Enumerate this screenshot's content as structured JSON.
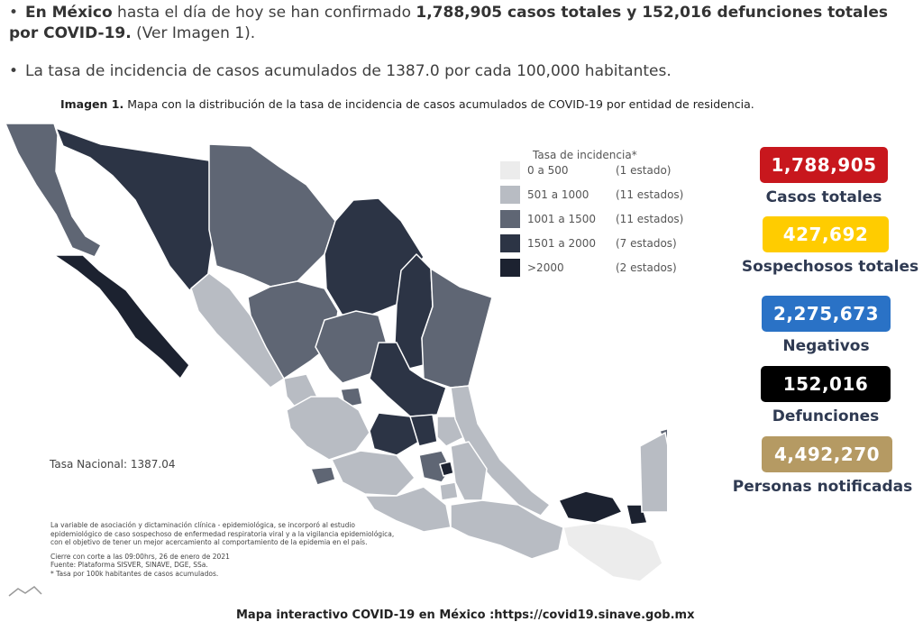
{
  "bullets": {
    "b1": {
      "lead": "En México",
      "t1": " hasta el día de hoy se han confirmado ",
      "bold": "1,788,905 casos totales y 152,016 defunciones totales por COVID-19.",
      "t2": " (Ver Imagen 1)."
    },
    "b2": "La tasa de incidencia de casos acumulados de 1387.0 por cada 100,000 habitantes."
  },
  "caption": {
    "lead": "Imagen 1.",
    "text": " Mapa con la distribución de la tasa de incidencia de casos acumulados de COVID-19 por entidad de residencia."
  },
  "legend": {
    "title": "Tasa de incidencia*",
    "rows": [
      {
        "range": "0 a   500",
        "count": "(1 estado)",
        "color": "#ececec"
      },
      {
        "range": "501 a  1000",
        "count": "(11 estados)",
        "color": "#b8bcc3"
      },
      {
        "range": "1001 a  1500",
        "count": "(11 estados)",
        "color": "#5f6674"
      },
      {
        "range": "1501 a  2000",
        "count": "(7 estados)",
        "color": "#2c3445"
      },
      {
        "range": ">2000",
        "count": "(2 estados)",
        "color": "#1c2230"
      }
    ]
  },
  "stats": [
    {
      "value": "1,788,905",
      "label": "Casos totales",
      "color": "#c8171d",
      "text_color": "#ffffff"
    },
    {
      "value": "427,692",
      "label": "Sospechosos totales",
      "color": "#ffcc00",
      "text_color": "#ffffff"
    },
    {
      "value": "2,275,673",
      "label": "Negativos",
      "color": "#2a72c6",
      "text_color": "#ffffff"
    },
    {
      "value": "152,016",
      "label": "Defunciones",
      "color": "#000000",
      "text_color": "#ffffff"
    },
    {
      "value": "4,492,270",
      "label": "Personas notificadas",
      "color": "#b59a63",
      "text_color": "#ffffff"
    }
  ],
  "tasa_nacional": "Tasa Nacional: 1387.04",
  "notes": {
    "n1": "La variable de asociación y dictaminación clínica - epidemiológica, se incorporó al estudio",
    "n2": "epidemiológico de caso sospechoso de enfermedad respiratoria viral y a la vigilancia epidemiológica,",
    "n3": "con el objetivo de tener un mejor acercamiento al comportamiento de la epidemia en el país.",
    "n4": "Cierre con corte a las 09:00hrs, 26 de enero de 2021",
    "n5": "Fuente: Plataforma SISVER, SINAVE, DGE, SSa.",
    "n6": "* Tasa por 100k habitantes de casos acumulados."
  },
  "bottom_line": "Mapa interactivo COVID-19 en México :https://covid19.sinave.gob.mx"
}
